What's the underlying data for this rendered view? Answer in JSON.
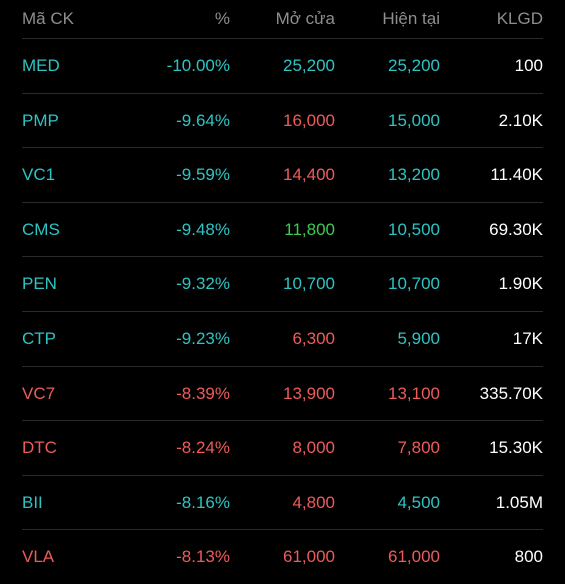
{
  "colors": {
    "floor": "#2ec4c4",
    "down": "#ee5b5b",
    "up": "#3dca55",
    "neutral": "#ffffff",
    "header": "#8e8e93"
  },
  "header": {
    "symbol": "Mã CK",
    "pct": "%",
    "open": "Mở cửa",
    "current": "Hiện tại",
    "volume": "KLGD"
  },
  "rows": [
    {
      "symbol": "MED",
      "pct": "-10.00%",
      "open": "25,200",
      "current": "25,200",
      "volume": "100",
      "symbol_color": "floor",
      "pct_color": "floor",
      "open_color": "floor",
      "current_color": "floor"
    },
    {
      "symbol": "PMP",
      "pct": "-9.64%",
      "open": "16,000",
      "current": "15,000",
      "volume": "2.10K",
      "symbol_color": "floor",
      "pct_color": "floor",
      "open_color": "down",
      "current_color": "floor"
    },
    {
      "symbol": "VC1",
      "pct": "-9.59%",
      "open": "14,400",
      "current": "13,200",
      "volume": "11.40K",
      "symbol_color": "floor",
      "pct_color": "floor",
      "open_color": "down",
      "current_color": "floor"
    },
    {
      "symbol": "CMS",
      "pct": "-9.48%",
      "open": "11,800",
      "current": "10,500",
      "volume": "69.30K",
      "symbol_color": "floor",
      "pct_color": "floor",
      "open_color": "up",
      "current_color": "floor"
    },
    {
      "symbol": "PEN",
      "pct": "-9.32%",
      "open": "10,700",
      "current": "10,700",
      "volume": "1.90K",
      "symbol_color": "floor",
      "pct_color": "floor",
      "open_color": "floor",
      "current_color": "floor"
    },
    {
      "symbol": "CTP",
      "pct": "-9.23%",
      "open": "6,300",
      "current": "5,900",
      "volume": "17K",
      "symbol_color": "floor",
      "pct_color": "floor",
      "open_color": "down",
      "current_color": "floor"
    },
    {
      "symbol": "VC7",
      "pct": "-8.39%",
      "open": "13,900",
      "current": "13,100",
      "volume": "335.70K",
      "symbol_color": "down",
      "pct_color": "down",
      "open_color": "down",
      "current_color": "down"
    },
    {
      "symbol": "DTC",
      "pct": "-8.24%",
      "open": "8,000",
      "current": "7,800",
      "volume": "15.30K",
      "symbol_color": "down",
      "pct_color": "down",
      "open_color": "down",
      "current_color": "down"
    },
    {
      "symbol": "BII",
      "pct": "-8.16%",
      "open": "4,800",
      "current": "4,500",
      "volume": "1.05M",
      "symbol_color": "floor",
      "pct_color": "floor",
      "open_color": "down",
      "current_color": "floor"
    },
    {
      "symbol": "VLA",
      "pct": "-8.13%",
      "open": "61,000",
      "current": "61,000",
      "volume": "800",
      "symbol_color": "down",
      "pct_color": "down",
      "open_color": "down",
      "current_color": "down"
    }
  ]
}
